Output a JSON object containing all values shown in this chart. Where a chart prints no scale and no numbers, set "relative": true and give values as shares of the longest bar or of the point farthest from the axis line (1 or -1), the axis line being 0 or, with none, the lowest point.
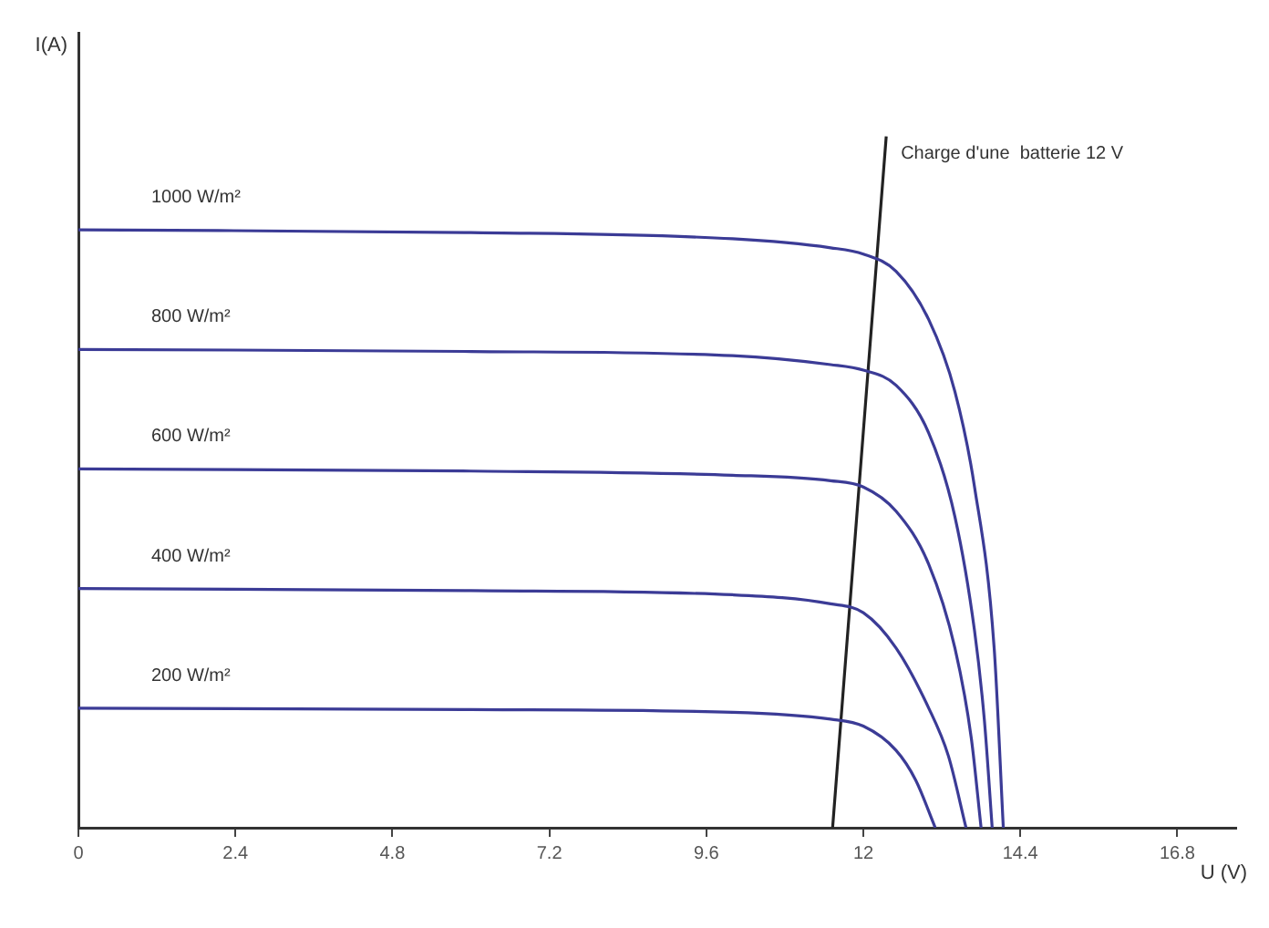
{
  "chart_data": {
    "type": "line",
    "relative": true,
    "xlabel": "U (V)",
    "ylabel": "I(A)",
    "xlim": [
      0,
      17.7
    ],
    "xticks": [
      0,
      2.4,
      4.8,
      7.2,
      9.6,
      12,
      14.4,
      16.8
    ],
    "grid": false,
    "legend": false,
    "marker": "none",
    "line_style": "solid",
    "series": [
      {
        "name": "1000 W/m²",
        "color": "#3b3b96",
        "x": [
          0,
          6,
          10,
          11.5,
          12,
          12.5,
          13,
          13.4,
          13.7,
          14,
          14.14
        ],
        "values": [
          0.865,
          0.861,
          0.852,
          0.839,
          0.83,
          0.805,
          0.735,
          0.631,
          0.493,
          0.26,
          0
        ]
      },
      {
        "name": "800 W/m²",
        "color": "#3b3b96",
        "x": [
          0,
          6,
          10,
          11.5,
          12,
          12.5,
          13,
          13.4,
          13.7,
          13.85,
          13.97
        ],
        "values": [
          0.692,
          0.689,
          0.683,
          0.67,
          0.662,
          0.64,
          0.571,
          0.45,
          0.285,
          0.156,
          0
        ]
      },
      {
        "name": "600 W/m²",
        "color": "#3b3b96",
        "x": [
          0,
          6,
          10,
          11.5,
          12,
          12.5,
          13,
          13.4,
          13.65,
          13.8
        ],
        "values": [
          0.519,
          0.516,
          0.51,
          0.502,
          0.493,
          0.458,
          0.381,
          0.26,
          0.13,
          0
        ]
      },
      {
        "name": "400 W/m²",
        "color": "#3b3b96",
        "x": [
          0,
          6,
          10,
          11.5,
          12,
          12.5,
          13,
          13.3,
          13.57
        ],
        "values": [
          0.346,
          0.343,
          0.337,
          0.324,
          0.311,
          0.26,
          0.173,
          0.104,
          0
        ]
      },
      {
        "name": "200 W/m²",
        "color": "#3b3b96",
        "x": [
          0,
          6,
          10,
          11.5,
          12,
          12.5,
          12.8,
          13.1
        ],
        "values": [
          0.173,
          0.171,
          0.167,
          0.157,
          0.147,
          0.112,
          0.069,
          0
        ]
      },
      {
        "name": "Charge d'une  batterie 12 V",
        "color": "#222222",
        "x": [
          11.53,
          12.35
        ],
        "values": [
          0,
          1
        ]
      }
    ]
  }
}
